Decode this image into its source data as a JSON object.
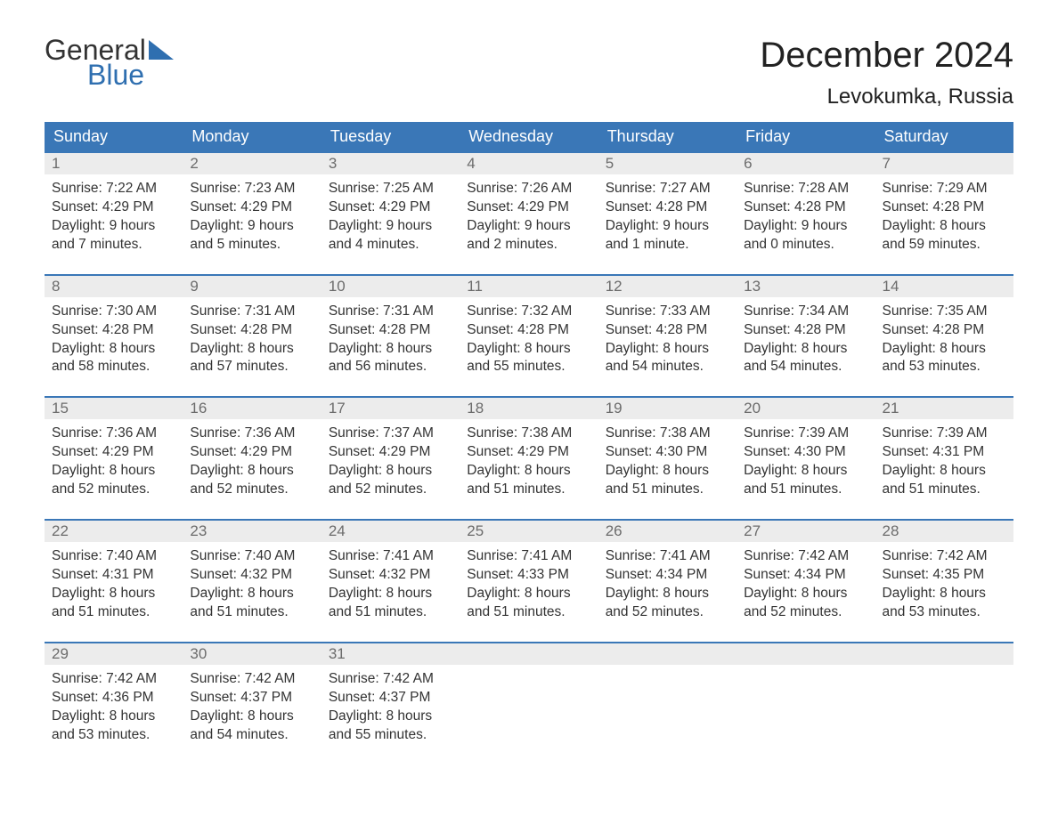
{
  "brand": {
    "word1": "General",
    "word2": "Blue",
    "word1_color": "#333333",
    "word2_color": "#2f6fb0",
    "triangle_color": "#2f6fb0",
    "fontsize": 32
  },
  "title": {
    "month": "December 2024",
    "month_fontsize": 40,
    "month_color": "#222222",
    "location": "Levokumka, Russia",
    "location_fontsize": 24,
    "location_color": "#222222"
  },
  "calendar": {
    "type": "table",
    "header_bg": "#3a77b7",
    "header_text_color": "#ffffff",
    "header_fontsize": 18,
    "week_divider_color": "#3a77b7",
    "daynum_bg": "#ececec",
    "daynum_color": "#6c6c6c",
    "daynum_fontsize": 17,
    "body_color": "#333333",
    "body_fontsize": 15.5,
    "background_color": "#ffffff",
    "columns": [
      "Sunday",
      "Monday",
      "Tuesday",
      "Wednesday",
      "Thursday",
      "Friday",
      "Saturday"
    ],
    "weeks": [
      [
        {
          "n": "1",
          "sunrise": "7:22 AM",
          "sunset": "4:29 PM",
          "daylight1": "9 hours",
          "daylight2": "and 7 minutes."
        },
        {
          "n": "2",
          "sunrise": "7:23 AM",
          "sunset": "4:29 PM",
          "daylight1": "9 hours",
          "daylight2": "and 5 minutes."
        },
        {
          "n": "3",
          "sunrise": "7:25 AM",
          "sunset": "4:29 PM",
          "daylight1": "9 hours",
          "daylight2": "and 4 minutes."
        },
        {
          "n": "4",
          "sunrise": "7:26 AM",
          "sunset": "4:29 PM",
          "daylight1": "9 hours",
          "daylight2": "and 2 minutes."
        },
        {
          "n": "5",
          "sunrise": "7:27 AM",
          "sunset": "4:28 PM",
          "daylight1": "9 hours",
          "daylight2": "and 1 minute."
        },
        {
          "n": "6",
          "sunrise": "7:28 AM",
          "sunset": "4:28 PM",
          "daylight1": "9 hours",
          "daylight2": "and 0 minutes."
        },
        {
          "n": "7",
          "sunrise": "7:29 AM",
          "sunset": "4:28 PM",
          "daylight1": "8 hours",
          "daylight2": "and 59 minutes."
        }
      ],
      [
        {
          "n": "8",
          "sunrise": "7:30 AM",
          "sunset": "4:28 PM",
          "daylight1": "8 hours",
          "daylight2": "and 58 minutes."
        },
        {
          "n": "9",
          "sunrise": "7:31 AM",
          "sunset": "4:28 PM",
          "daylight1": "8 hours",
          "daylight2": "and 57 minutes."
        },
        {
          "n": "10",
          "sunrise": "7:31 AM",
          "sunset": "4:28 PM",
          "daylight1": "8 hours",
          "daylight2": "and 56 minutes."
        },
        {
          "n": "11",
          "sunrise": "7:32 AM",
          "sunset": "4:28 PM",
          "daylight1": "8 hours",
          "daylight2": "and 55 minutes."
        },
        {
          "n": "12",
          "sunrise": "7:33 AM",
          "sunset": "4:28 PM",
          "daylight1": "8 hours",
          "daylight2": "and 54 minutes."
        },
        {
          "n": "13",
          "sunrise": "7:34 AM",
          "sunset": "4:28 PM",
          "daylight1": "8 hours",
          "daylight2": "and 54 minutes."
        },
        {
          "n": "14",
          "sunrise": "7:35 AM",
          "sunset": "4:28 PM",
          "daylight1": "8 hours",
          "daylight2": "and 53 minutes."
        }
      ],
      [
        {
          "n": "15",
          "sunrise": "7:36 AM",
          "sunset": "4:29 PM",
          "daylight1": "8 hours",
          "daylight2": "and 52 minutes."
        },
        {
          "n": "16",
          "sunrise": "7:36 AM",
          "sunset": "4:29 PM",
          "daylight1": "8 hours",
          "daylight2": "and 52 minutes."
        },
        {
          "n": "17",
          "sunrise": "7:37 AM",
          "sunset": "4:29 PM",
          "daylight1": "8 hours",
          "daylight2": "and 52 minutes."
        },
        {
          "n": "18",
          "sunrise": "7:38 AM",
          "sunset": "4:29 PM",
          "daylight1": "8 hours",
          "daylight2": "and 51 minutes."
        },
        {
          "n": "19",
          "sunrise": "7:38 AM",
          "sunset": "4:30 PM",
          "daylight1": "8 hours",
          "daylight2": "and 51 minutes."
        },
        {
          "n": "20",
          "sunrise": "7:39 AM",
          "sunset": "4:30 PM",
          "daylight1": "8 hours",
          "daylight2": "and 51 minutes."
        },
        {
          "n": "21",
          "sunrise": "7:39 AM",
          "sunset": "4:31 PM",
          "daylight1": "8 hours",
          "daylight2": "and 51 minutes."
        }
      ],
      [
        {
          "n": "22",
          "sunrise": "7:40 AM",
          "sunset": "4:31 PM",
          "daylight1": "8 hours",
          "daylight2": "and 51 minutes."
        },
        {
          "n": "23",
          "sunrise": "7:40 AM",
          "sunset": "4:32 PM",
          "daylight1": "8 hours",
          "daylight2": "and 51 minutes."
        },
        {
          "n": "24",
          "sunrise": "7:41 AM",
          "sunset": "4:32 PM",
          "daylight1": "8 hours",
          "daylight2": "and 51 minutes."
        },
        {
          "n": "25",
          "sunrise": "7:41 AM",
          "sunset": "4:33 PM",
          "daylight1": "8 hours",
          "daylight2": "and 51 minutes."
        },
        {
          "n": "26",
          "sunrise": "7:41 AM",
          "sunset": "4:34 PM",
          "daylight1": "8 hours",
          "daylight2": "and 52 minutes."
        },
        {
          "n": "27",
          "sunrise": "7:42 AM",
          "sunset": "4:34 PM",
          "daylight1": "8 hours",
          "daylight2": "and 52 minutes."
        },
        {
          "n": "28",
          "sunrise": "7:42 AM",
          "sunset": "4:35 PM",
          "daylight1": "8 hours",
          "daylight2": "and 53 minutes."
        }
      ],
      [
        {
          "n": "29",
          "sunrise": "7:42 AM",
          "sunset": "4:36 PM",
          "daylight1": "8 hours",
          "daylight2": "and 53 minutes."
        },
        {
          "n": "30",
          "sunrise": "7:42 AM",
          "sunset": "4:37 PM",
          "daylight1": "8 hours",
          "daylight2": "and 54 minutes."
        },
        {
          "n": "31",
          "sunrise": "7:42 AM",
          "sunset": "4:37 PM",
          "daylight1": "8 hours",
          "daylight2": "and 55 minutes."
        },
        {
          "empty": true
        },
        {
          "empty": true
        },
        {
          "empty": true
        },
        {
          "empty": true
        }
      ]
    ],
    "labels": {
      "sunrise_prefix": "Sunrise: ",
      "sunset_prefix": "Sunset: ",
      "daylight_prefix": "Daylight: "
    }
  }
}
